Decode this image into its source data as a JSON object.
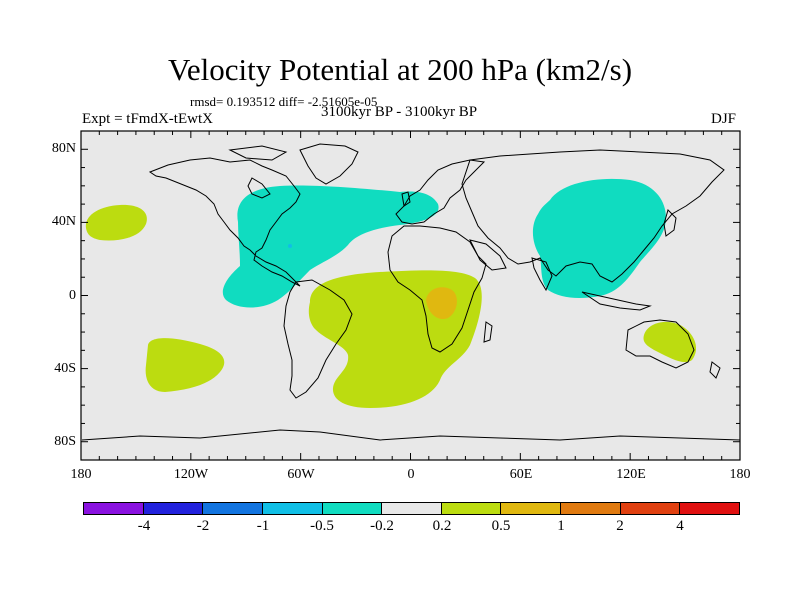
{
  "title": "Velocity Potential at 200 hPa (km2/s)",
  "stats": "rmsd= 0.193512 diff= -2.51605e-05",
  "left_label": "Expt = tFmdX-tEwtX",
  "center_label": "3100kyr BP - 3100kyr BP",
  "right_label": "DJF",
  "y_axis_labels": [
    "80N",
    "40N",
    "0",
    "40S",
    "80S"
  ],
  "x_axis_labels": [
    "180",
    "120W",
    "60W",
    "0",
    "60E",
    "120E",
    "180"
  ],
  "colorbar": {
    "colors": [
      "#8a12e0",
      "#2222dd",
      "#1274e0",
      "#10bfe6",
      "#10dcc0",
      "#e8e8e8",
      "#bcdc10",
      "#e0b810",
      "#e07a10",
      "#e04010",
      "#e01010"
    ],
    "labels": [
      "-4",
      "-2",
      "-1",
      "-0.5",
      "-0.2",
      "0.2",
      "0.5",
      "1",
      "2",
      "4"
    ]
  },
  "field_colors": {
    "ocean_bg": "#e8e8e8",
    "neg_02": "#10dcc0",
    "pos_02": "#bcdc10",
    "pos_05": "#e0b810",
    "neg_05": "#10bfe6"
  }
}
